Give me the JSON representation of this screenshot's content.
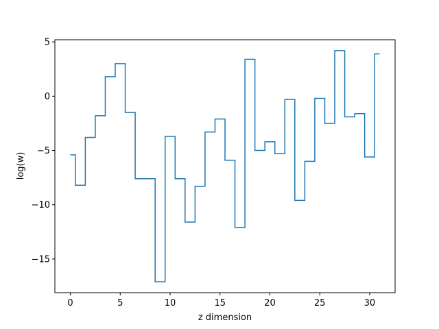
{
  "chart_data": {
    "type": "line",
    "drawstyle": "steps-mid",
    "title": "",
    "xlabel": "z dimension",
    "ylabel": "log(w)",
    "xlim": [
      -1.55,
      32.55
    ],
    "ylim": [
      -18.1,
      5.2
    ],
    "xticks": [
      0,
      5,
      10,
      15,
      20,
      25,
      30
    ],
    "yticks": [
      5,
      0,
      -5,
      -10,
      -15
    ],
    "ytick_labels": [
      "5",
      "0",
      "−5",
      "−10",
      "−15"
    ],
    "grid": false,
    "color": "#1f77b4",
    "series": [
      {
        "x": [
          0,
          1,
          2,
          3,
          4,
          5,
          6,
          7,
          8,
          9,
          10,
          11,
          12,
          13,
          14,
          15,
          16,
          17,
          18,
          19,
          20,
          21,
          22,
          23,
          24,
          25,
          26,
          27,
          28,
          29,
          30,
          31
        ],
        "values": [
          -5.4,
          -8.2,
          -3.8,
          -1.8,
          1.8,
          3.0,
          -1.5,
          -7.6,
          -7.6,
          -17.1,
          -3.7,
          -7.6,
          -11.6,
          -8.3,
          -3.3,
          -2.1,
          -5.9,
          -12.1,
          3.4,
          -5.0,
          -4.2,
          -5.3,
          -0.3,
          -9.6,
          -6.0,
          -0.2,
          -2.5,
          4.2,
          -1.9,
          -1.6,
          -5.6,
          3.9
        ]
      }
    ]
  }
}
